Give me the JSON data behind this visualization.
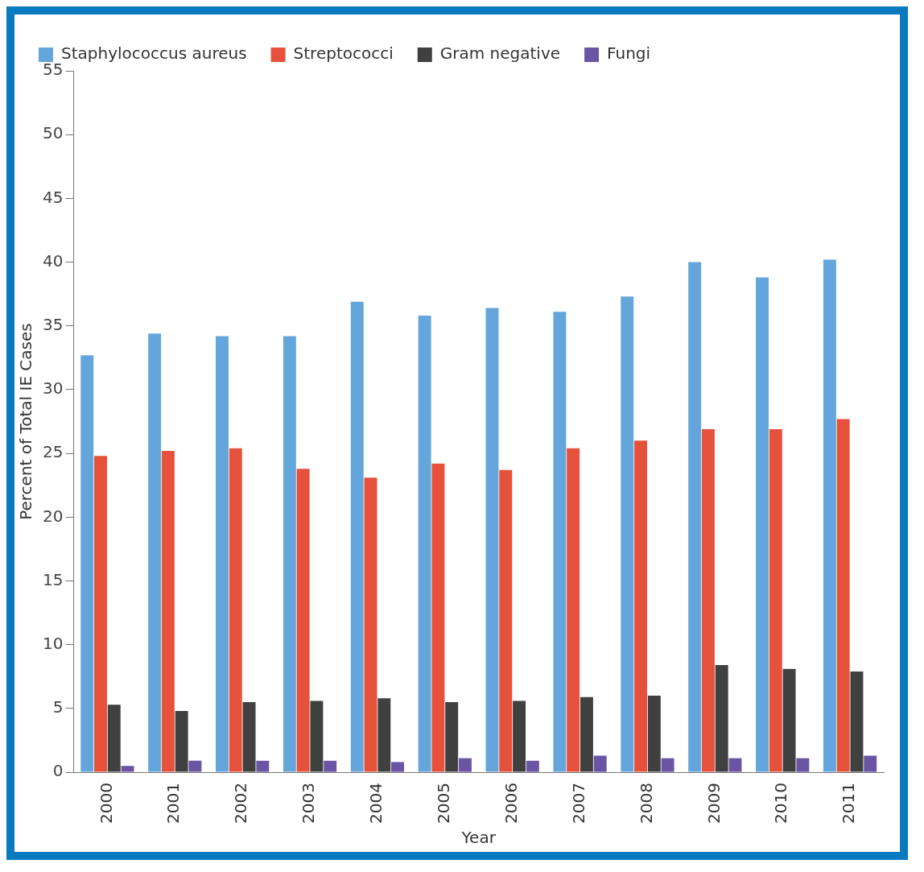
{
  "chart_data": {
    "type": "bar",
    "xlabel": "Year",
    "ylabel": "Percent of Total IE Cases",
    "categories": [
      "2000",
      "2001",
      "2002",
      "2003",
      "2004",
      "2005",
      "2006",
      "2007",
      "2008",
      "2009",
      "2010",
      "2011"
    ],
    "series": [
      {
        "name": "Staphylococcus aureus",
        "color": "#64a6db",
        "values": [
          32.7,
          34.4,
          34.2,
          34.2,
          36.9,
          35.8,
          36.4,
          36.1,
          37.3,
          40.0,
          38.8,
          40.2
        ]
      },
      {
        "name": "Streptococci",
        "color": "#e5513a",
        "values": [
          24.8,
          25.2,
          25.4,
          23.8,
          23.1,
          24.2,
          23.7,
          25.4,
          26.0,
          26.9,
          26.9,
          27.7
        ]
      },
      {
        "name": "Gram negative",
        "color": "#404040",
        "values": [
          5.3,
          4.8,
          5.5,
          5.6,
          5.8,
          5.5,
          5.6,
          5.9,
          6.0,
          8.4,
          8.1,
          7.9
        ]
      },
      {
        "name": "Fungi",
        "color": "#6a55a4",
        "values": [
          0.5,
          0.9,
          0.9,
          0.9,
          0.8,
          1.1,
          0.9,
          1.3,
          1.1,
          1.1,
          1.1,
          1.3
        ]
      }
    ],
    "ylim": [
      0,
      55
    ],
    "yticks": [
      0,
      5,
      10,
      15,
      20,
      25,
      30,
      35,
      40,
      45,
      50,
      55
    ],
    "grid": false,
    "legend": "top"
  }
}
